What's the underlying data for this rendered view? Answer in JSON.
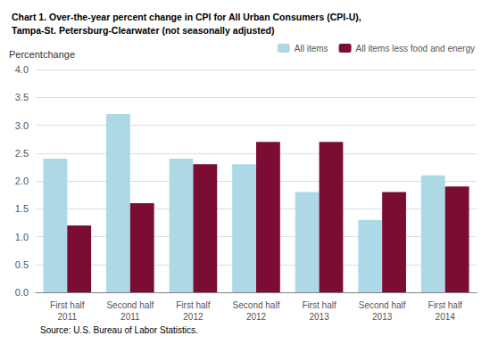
{
  "chart_data": {
    "type": "bar",
    "title": "Chart 1. Over-the-year percent change in CPI for All Urban Consumers (CPI-U),\nTampa-St. Petersburg-Clearwater (not seasonally adjusted)",
    "ylabel": "Percentchange",
    "source": "Source: U.S. Bureau of Labor Statistics.",
    "categories": [
      "First half\n2011",
      "Second half\n2011",
      "First half\n2012",
      "Second half\n2012",
      "First half\n2013",
      "Second half\n2013",
      "First half\n2014"
    ],
    "series": [
      {
        "name": "All items",
        "color": "#add8e6",
        "values": [
          2.4,
          3.2,
          2.4,
          2.3,
          1.8,
          1.3,
          2.1
        ]
      },
      {
        "name": "All items less food and energy",
        "color": "#7b0d35",
        "values": [
          1.2,
          1.6,
          2.3,
          2.7,
          2.7,
          1.8,
          1.9
        ]
      }
    ],
    "ylim": [
      0,
      4.0
    ],
    "yticks": [
      {
        "value": 0,
        "label": "0.0"
      },
      0.5,
      {
        "value": 1,
        "label": "1.0"
      },
      1.5,
      {
        "value": 2,
        "label": "2.0"
      },
      2.5,
      {
        "value": 3,
        "label": "3.0"
      },
      3.5,
      {
        "value": 4,
        "label": "4.0"
      }
    ],
    "grid": true,
    "legend": "upper right"
  }
}
